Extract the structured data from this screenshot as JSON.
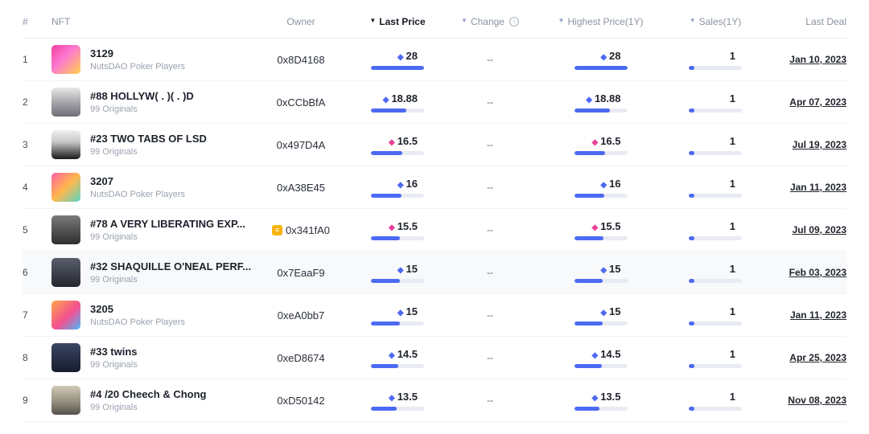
{
  "header": {
    "rank": "#",
    "nft": "NFT",
    "owner": "Owner",
    "last_price": "Last Price",
    "change": "Change",
    "highest_price": "Highest Price(1Y)",
    "sales": "Sales(1Y)",
    "last_deal": "Last Deal"
  },
  "icons": {
    "sort_desc": "▼",
    "info": "i",
    "gem": "◆",
    "owner_badge": "≡"
  },
  "colors": {
    "accent_blue": "#4d6af2",
    "accent_pink": "#e8439a",
    "bar_track": "#e8ebf1",
    "active_sort": "#171b22",
    "inactive_sort": "#93a0c8",
    "badge_yellow": "#f6b40c",
    "row_highlight": "#f8f9fb"
  },
  "rows": [
    {
      "rank": "1",
      "name": "3129",
      "collection": "NutsDAO Poker Players",
      "owner": "0x8D4168",
      "owner_badge": false,
      "last_price": "28",
      "change": "--",
      "highest_price": "28",
      "sales": "1",
      "last_deal": "Jan 10, 2023",
      "gem_color": "#4d6af2",
      "bar_w": "100%",
      "sales_w": "10%",
      "bg": "#ffffff",
      "thumb": "linear-gradient(135deg,#f43fa0 0%,#fb7bd0 45%,#ffd24a 100%)"
    },
    {
      "rank": "2",
      "name": "#88 HOLLYW( . )( . )D",
      "collection": "99 Originals",
      "owner": "0xCCbBfA",
      "owner_badge": false,
      "last_price": "18.88",
      "change": "--",
      "highest_price": "18.88",
      "sales": "1",
      "last_deal": "Apr 07, 2023",
      "gem_color": "#4d6af2",
      "bar_w": "67%",
      "sales_w": "10%",
      "bg": "#ffffff",
      "thumb": "linear-gradient(180deg,#e8e8e8,#9a9aa0 60%,#6e6e74)"
    },
    {
      "rank": "3",
      "name": "#23 TWO TABS OF LSD",
      "collection": "99 Originals",
      "owner": "0x497D4A",
      "owner_badge": false,
      "last_price": "16.5",
      "change": "--",
      "highest_price": "16.5",
      "sales": "1",
      "last_deal": "Jul 19, 2023",
      "gem_color": "#e8439a",
      "bar_w": "59%",
      "sales_w": "10%",
      "bg": "#ffffff",
      "thumb": "linear-gradient(180deg,#f0f0f0,#c8c8c8 40%,#1a1a1a)"
    },
    {
      "rank": "4",
      "name": "3207",
      "collection": "NutsDAO Poker Players",
      "owner": "0xA38E45",
      "owner_badge": false,
      "last_price": "16",
      "change": "--",
      "highest_price": "16",
      "sales": "1",
      "last_deal": "Jan 11, 2023",
      "gem_color": "#4d6af2",
      "bar_w": "57%",
      "sales_w": "10%",
      "bg": "#ffffff",
      "thumb": "linear-gradient(135deg,#ff5fa2,#ffb84d 50%,#59d4c2)"
    },
    {
      "rank": "5",
      "name": "#78 A VERY LIBERATING EXP...",
      "collection": "99 Originals",
      "owner": "0x341fA0",
      "owner_badge": true,
      "last_price": "15.5",
      "change": "--",
      "highest_price": "15.5",
      "sales": "1",
      "last_deal": "Jul 09, 2023",
      "gem_color": "#e8439a",
      "bar_w": "55%",
      "sales_w": "10%",
      "bg": "#ffffff",
      "thumb": "linear-gradient(180deg,#7a7a7a,#2e2e2e)"
    },
    {
      "rank": "6",
      "name": "#32 SHAQUILLE O'NEAL PERF...",
      "collection": "99 Originals",
      "owner": "0x7EaaF9",
      "owner_badge": false,
      "last_price": "15",
      "change": "--",
      "highest_price": "15",
      "sales": "1",
      "last_deal": "Feb 03, 2023",
      "gem_color": "#4d6af2",
      "bar_w": "54%",
      "sales_w": "10%",
      "bg": "#f8f9fb",
      "thumb": "linear-gradient(180deg,#5a5f6b,#23262e)"
    },
    {
      "rank": "7",
      "name": "3205",
      "collection": "NutsDAO Poker Players",
      "owner": "0xeA0bb7",
      "owner_badge": false,
      "last_price": "15",
      "change": "--",
      "highest_price": "15",
      "sales": "1",
      "last_deal": "Jan 11, 2023",
      "gem_color": "#4d6af2",
      "bar_w": "54%",
      "sales_w": "10%",
      "bg": "#ffffff",
      "thumb": "linear-gradient(135deg,#ffa64d,#f4508e 55%,#4db8ff)"
    },
    {
      "rank": "8",
      "name": "#33 twins",
      "collection": "99 Originals",
      "owner": "0xeD8674",
      "owner_badge": false,
      "last_price": "14.5",
      "change": "--",
      "highest_price": "14.5",
      "sales": "1",
      "last_deal": "Apr 25, 2023",
      "gem_color": "#4d6af2",
      "bar_w": "52%",
      "sales_w": "10%",
      "bg": "#ffffff",
      "thumb": "linear-gradient(180deg,#3b4663,#161c2e)"
    },
    {
      "rank": "9",
      "name": "#4 /20 Cheech & Chong",
      "collection": "99 Originals",
      "owner": "0xD50142",
      "owner_badge": false,
      "last_price": "13.5",
      "change": "--",
      "highest_price": "13.5",
      "sales": "1",
      "last_deal": "Nov 08, 2023",
      "gem_color": "#4d6af2",
      "bar_w": "48%",
      "sales_w": "10%",
      "bg": "#ffffff",
      "thumb": "linear-gradient(180deg,#cfc9b8,#8f897a 60%,#55504a)"
    }
  ]
}
